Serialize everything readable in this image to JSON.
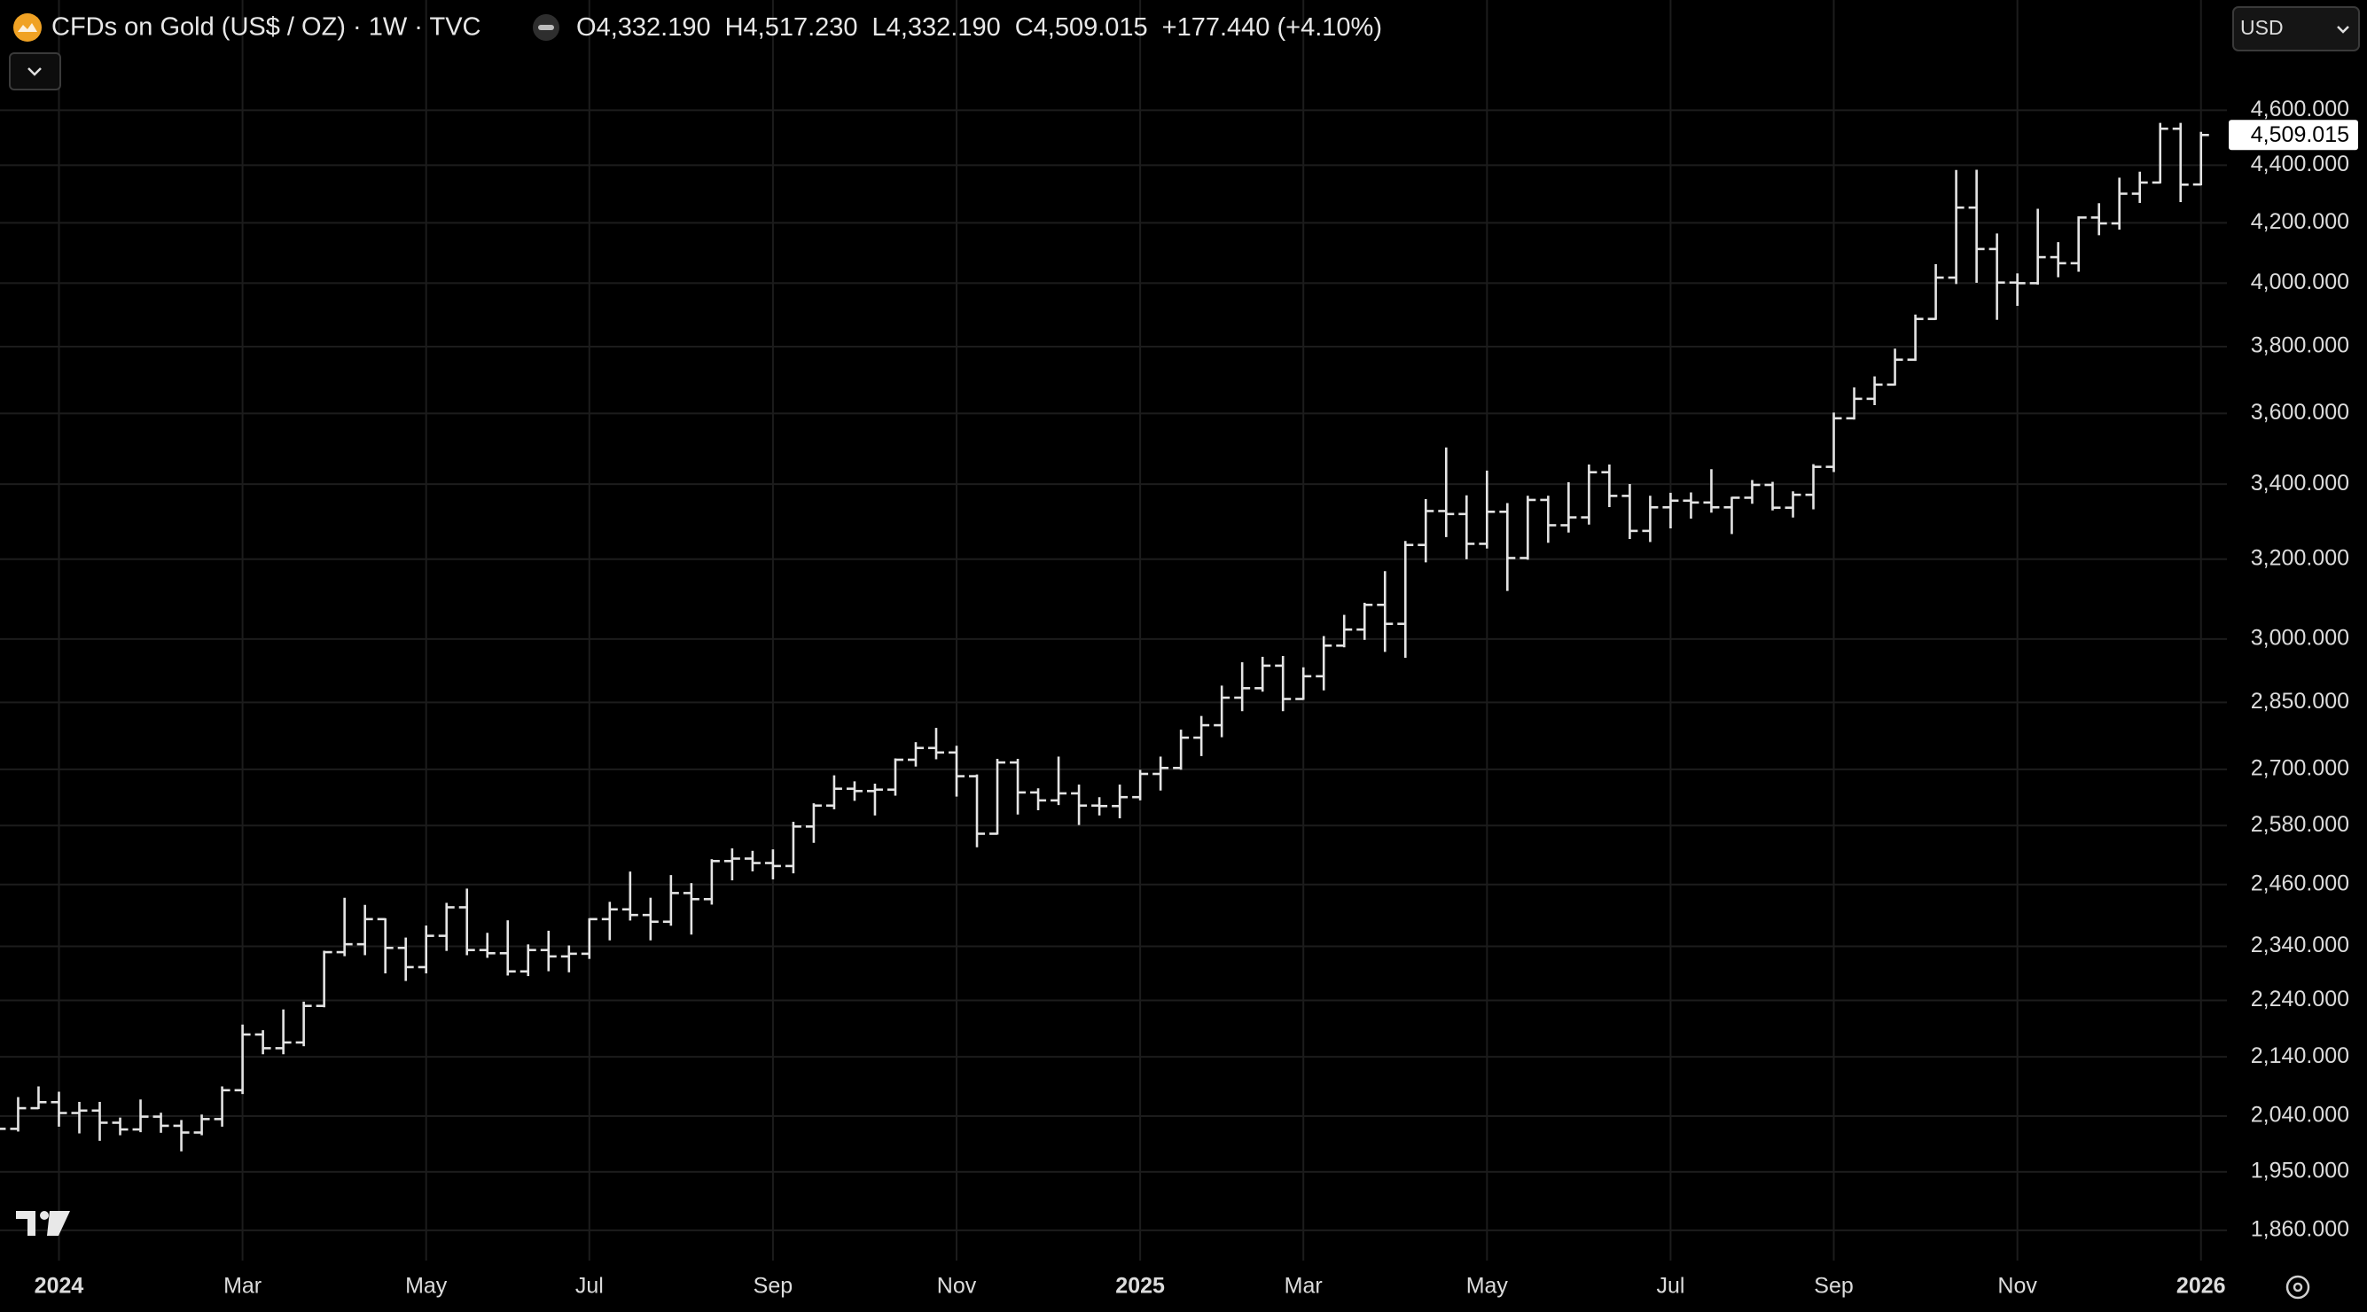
{
  "chart_data": {
    "type": "ohlc",
    "title": "CFDs on Gold (US$ / OZ) · 1W · TVC",
    "legend_values": [
      {
        "letter": "O",
        "value": "4,332.190"
      },
      {
        "letter": "H",
        "value": "4,517.230"
      },
      {
        "letter": "L",
        "value": "4,332.190"
      },
      {
        "letter": "C",
        "value": "4,509.015"
      }
    ],
    "change_label": "+177.440 (+4.10%)",
    "currency": "USD",
    "last_price_label": "4,509.015",
    "log_scale": true,
    "grid": true,
    "color": "#e4e4e4",
    "categories": [
      null,
      null,
      null,
      "2024",
      null,
      null,
      null,
      null,
      null,
      null,
      null,
      null,
      "Mar",
      null,
      null,
      null,
      null,
      null,
      null,
      null,
      null,
      "May",
      null,
      null,
      null,
      null,
      null,
      null,
      null,
      "Jul",
      null,
      null,
      null,
      null,
      null,
      null,
      null,
      null,
      "Sep",
      null,
      null,
      null,
      null,
      null,
      null,
      null,
      null,
      "Nov",
      null,
      null,
      null,
      null,
      null,
      null,
      null,
      null,
      "2025",
      null,
      null,
      null,
      null,
      null,
      null,
      null,
      "Mar",
      null,
      null,
      null,
      null,
      null,
      null,
      null,
      null,
      "May",
      null,
      null,
      null,
      null,
      null,
      null,
      null,
      null,
      "Jul",
      null,
      null,
      null,
      null,
      null,
      null,
      null,
      "Sep",
      null,
      null,
      null,
      null,
      null,
      null,
      null,
      null,
      "Nov",
      null,
      null,
      null,
      null,
      null,
      null,
      null,
      null,
      "2026"
    ],
    "open": [
      2004,
      2019,
      2053,
      2063,
      2045,
      2049,
      2029,
      2018,
      2039,
      2024,
      2013,
      2035,
      2083,
      2179,
      2155,
      2165,
      2230,
      2329,
      2344,
      2392,
      2337,
      2301,
      2360,
      2415,
      2333,
      2327,
      2293,
      2333,
      2321,
      2326,
      2392,
      2411,
      2400,
      2387,
      2443,
      2431,
      2507,
      2512,
      2503,
      2497,
      2578,
      2622,
      2658,
      2653,
      2656,
      2721,
      2747,
      2737,
      2685,
      2563,
      2715,
      2650,
      2633,
      2648,
      2622,
      2621,
      2640,
      2690,
      2703,
      2770,
      2798,
      2861,
      2883,
      2936,
      2858,
      2911,
      2984,
      3023,
      3084,
      3037,
      3237,
      3327,
      3319,
      3240,
      3325,
      3203,
      3357,
      3289,
      3310,
      3433,
      3368,
      3274,
      3337,
      3355,
      3350,
      3337,
      3363,
      3398,
      3336,
      3371,
      3448,
      3586,
      3643,
      3685,
      3760,
      3886,
      4018,
      4252,
      4112,
      4002,
      4000,
      4085,
      4065,
      4218,
      4198,
      4300,
      4339,
      4532,
      4332.19
    ],
    "high": [
      2047,
      2070,
      2088,
      2079,
      2062,
      2062,
      2036,
      2066,
      2044,
      2032,
      2041,
      2088,
      2195,
      2185,
      2222,
      2236,
      2330,
      2432,
      2418,
      2392,
      2355,
      2378,
      2422,
      2450,
      2364,
      2388,
      2342,
      2368,
      2340,
      2392,
      2424,
      2484,
      2432,
      2477,
      2461,
      2509,
      2531,
      2526,
      2529,
      2586,
      2625,
      2685,
      2672,
      2667,
      2722,
      2758,
      2790,
      2750,
      2687,
      2721,
      2721,
      2657,
      2726,
      2665,
      2638,
      2665,
      2697,
      2726,
      2786,
      2817,
      2887,
      2942,
      2955,
      2957,
      2930,
      3005,
      3057,
      3087,
      3167,
      3245,
      3357,
      3500,
      3367,
      3435,
      3346,
      3366,
      3366,
      3403,
      3452,
      3452,
      3398,
      3366,
      3374,
      3375,
      3439,
      3363,
      3409,
      3404,
      3378,
      3453,
      3600,
      3674,
      3707,
      3791,
      3897,
      4059,
      4380,
      4381,
      4161,
      4029,
      4245,
      4132,
      4219,
      4264,
      4353,
      4374,
      4550,
      4550,
      4517.23
    ],
    "low": [
      1973,
      2016,
      2053,
      2024,
      2013,
      2001,
      2010,
      2015,
      2014,
      1984,
      2010,
      2024,
      2078,
      2146,
      2146,
      2160,
      2229,
      2323,
      2325,
      2291,
      2277,
      2291,
      2333,
      2325,
      2320,
      2287,
      2286,
      2295,
      2293,
      2318,
      2353,
      2391,
      2353,
      2381,
      2364,
      2422,
      2470,
      2488,
      2472,
      2484,
      2546,
      2616,
      2634,
      2603,
      2645,
      2708,
      2724,
      2643,
      2537,
      2563,
      2605,
      2614,
      2625,
      2583,
      2603,
      2597,
      2635,
      2656,
      2701,
      2731,
      2773,
      2832,
      2877,
      2832,
      2858,
      2880,
      2982,
      3000,
      2971,
      2957,
      3194,
      3260,
      3202,
      3230,
      3121,
      3201,
      3245,
      3272,
      3293,
      3340,
      3255,
      3247,
      3283,
      3309,
      3325,
      3268,
      3349,
      3331,
      3312,
      3334,
      3436,
      3585,
      3627,
      3685,
      3759,
      3886,
      4000,
      4004,
      3886,
      3930,
      3998,
      4022,
      4040,
      4161,
      4180,
      4271,
      4339,
      4274,
      4332.19
    ],
    "close": [
      2019,
      2053,
      2063,
      2045,
      2049,
      2029,
      2018,
      2039,
      2024,
      2013,
      2035,
      2083,
      2179,
      2155,
      2165,
      2230,
      2329,
      2344,
      2392,
      2337,
      2301,
      2360,
      2415,
      2333,
      2327,
      2293,
      2333,
      2321,
      2326,
      2392,
      2411,
      2400,
      2387,
      2443,
      2431,
      2507,
      2512,
      2503,
      2497,
      2578,
      2622,
      2658,
      2653,
      2656,
      2721,
      2747,
      2737,
      2685,
      2563,
      2715,
      2650,
      2633,
      2648,
      2622,
      2621,
      2640,
      2690,
      2703,
      2770,
      2798,
      2861,
      2883,
      2936,
      2858,
      2911,
      2984,
      3023,
      3084,
      3037,
      3237,
      3327,
      3319,
      3240,
      3325,
      3203,
      3357,
      3289,
      3310,
      3433,
      3368,
      3274,
      3337,
      3355,
      3350,
      3337,
      3363,
      3398,
      3336,
      3371,
      3448,
      3586,
      3643,
      3685,
      3760,
      3886,
      4018,
      4252,
      4112,
      4002,
      4000,
      4085,
      4065,
      4218,
      4198,
      4300,
      4339,
      4532,
      4331.575,
      4509.015
    ],
    "ylim": [
      1815,
      5029
    ],
    "yticks": [
      {
        "value": 1860,
        "label": "1,860.000"
      },
      {
        "value": 1950,
        "label": "1,950.000"
      },
      {
        "value": 2040,
        "label": "2,040.000"
      },
      {
        "value": 2140,
        "label": "2,140.000"
      },
      {
        "value": 2240,
        "label": "2,240.000"
      },
      {
        "value": 2340,
        "label": "2,340.000"
      },
      {
        "value": 2460,
        "label": "2,460.000"
      },
      {
        "value": 2580,
        "label": "2,580.000"
      },
      {
        "value": 2700,
        "label": "2,700.000"
      },
      {
        "value": 2850,
        "label": "2,850.000"
      },
      {
        "value": 3000,
        "label": "3,000.000"
      },
      {
        "value": 3200,
        "label": "3,200.000"
      },
      {
        "value": 3400,
        "label": "3,400.000"
      },
      {
        "value": 3600,
        "label": "3,600.000"
      },
      {
        "value": 3800,
        "label": "3,800.000"
      },
      {
        "value": 4000,
        "label": "4,000.000"
      },
      {
        "value": 4200,
        "label": "4,200.000"
      },
      {
        "value": 4400,
        "label": "4,400.000"
      },
      {
        "value": 4600,
        "label": "4,600.000"
      }
    ]
  }
}
